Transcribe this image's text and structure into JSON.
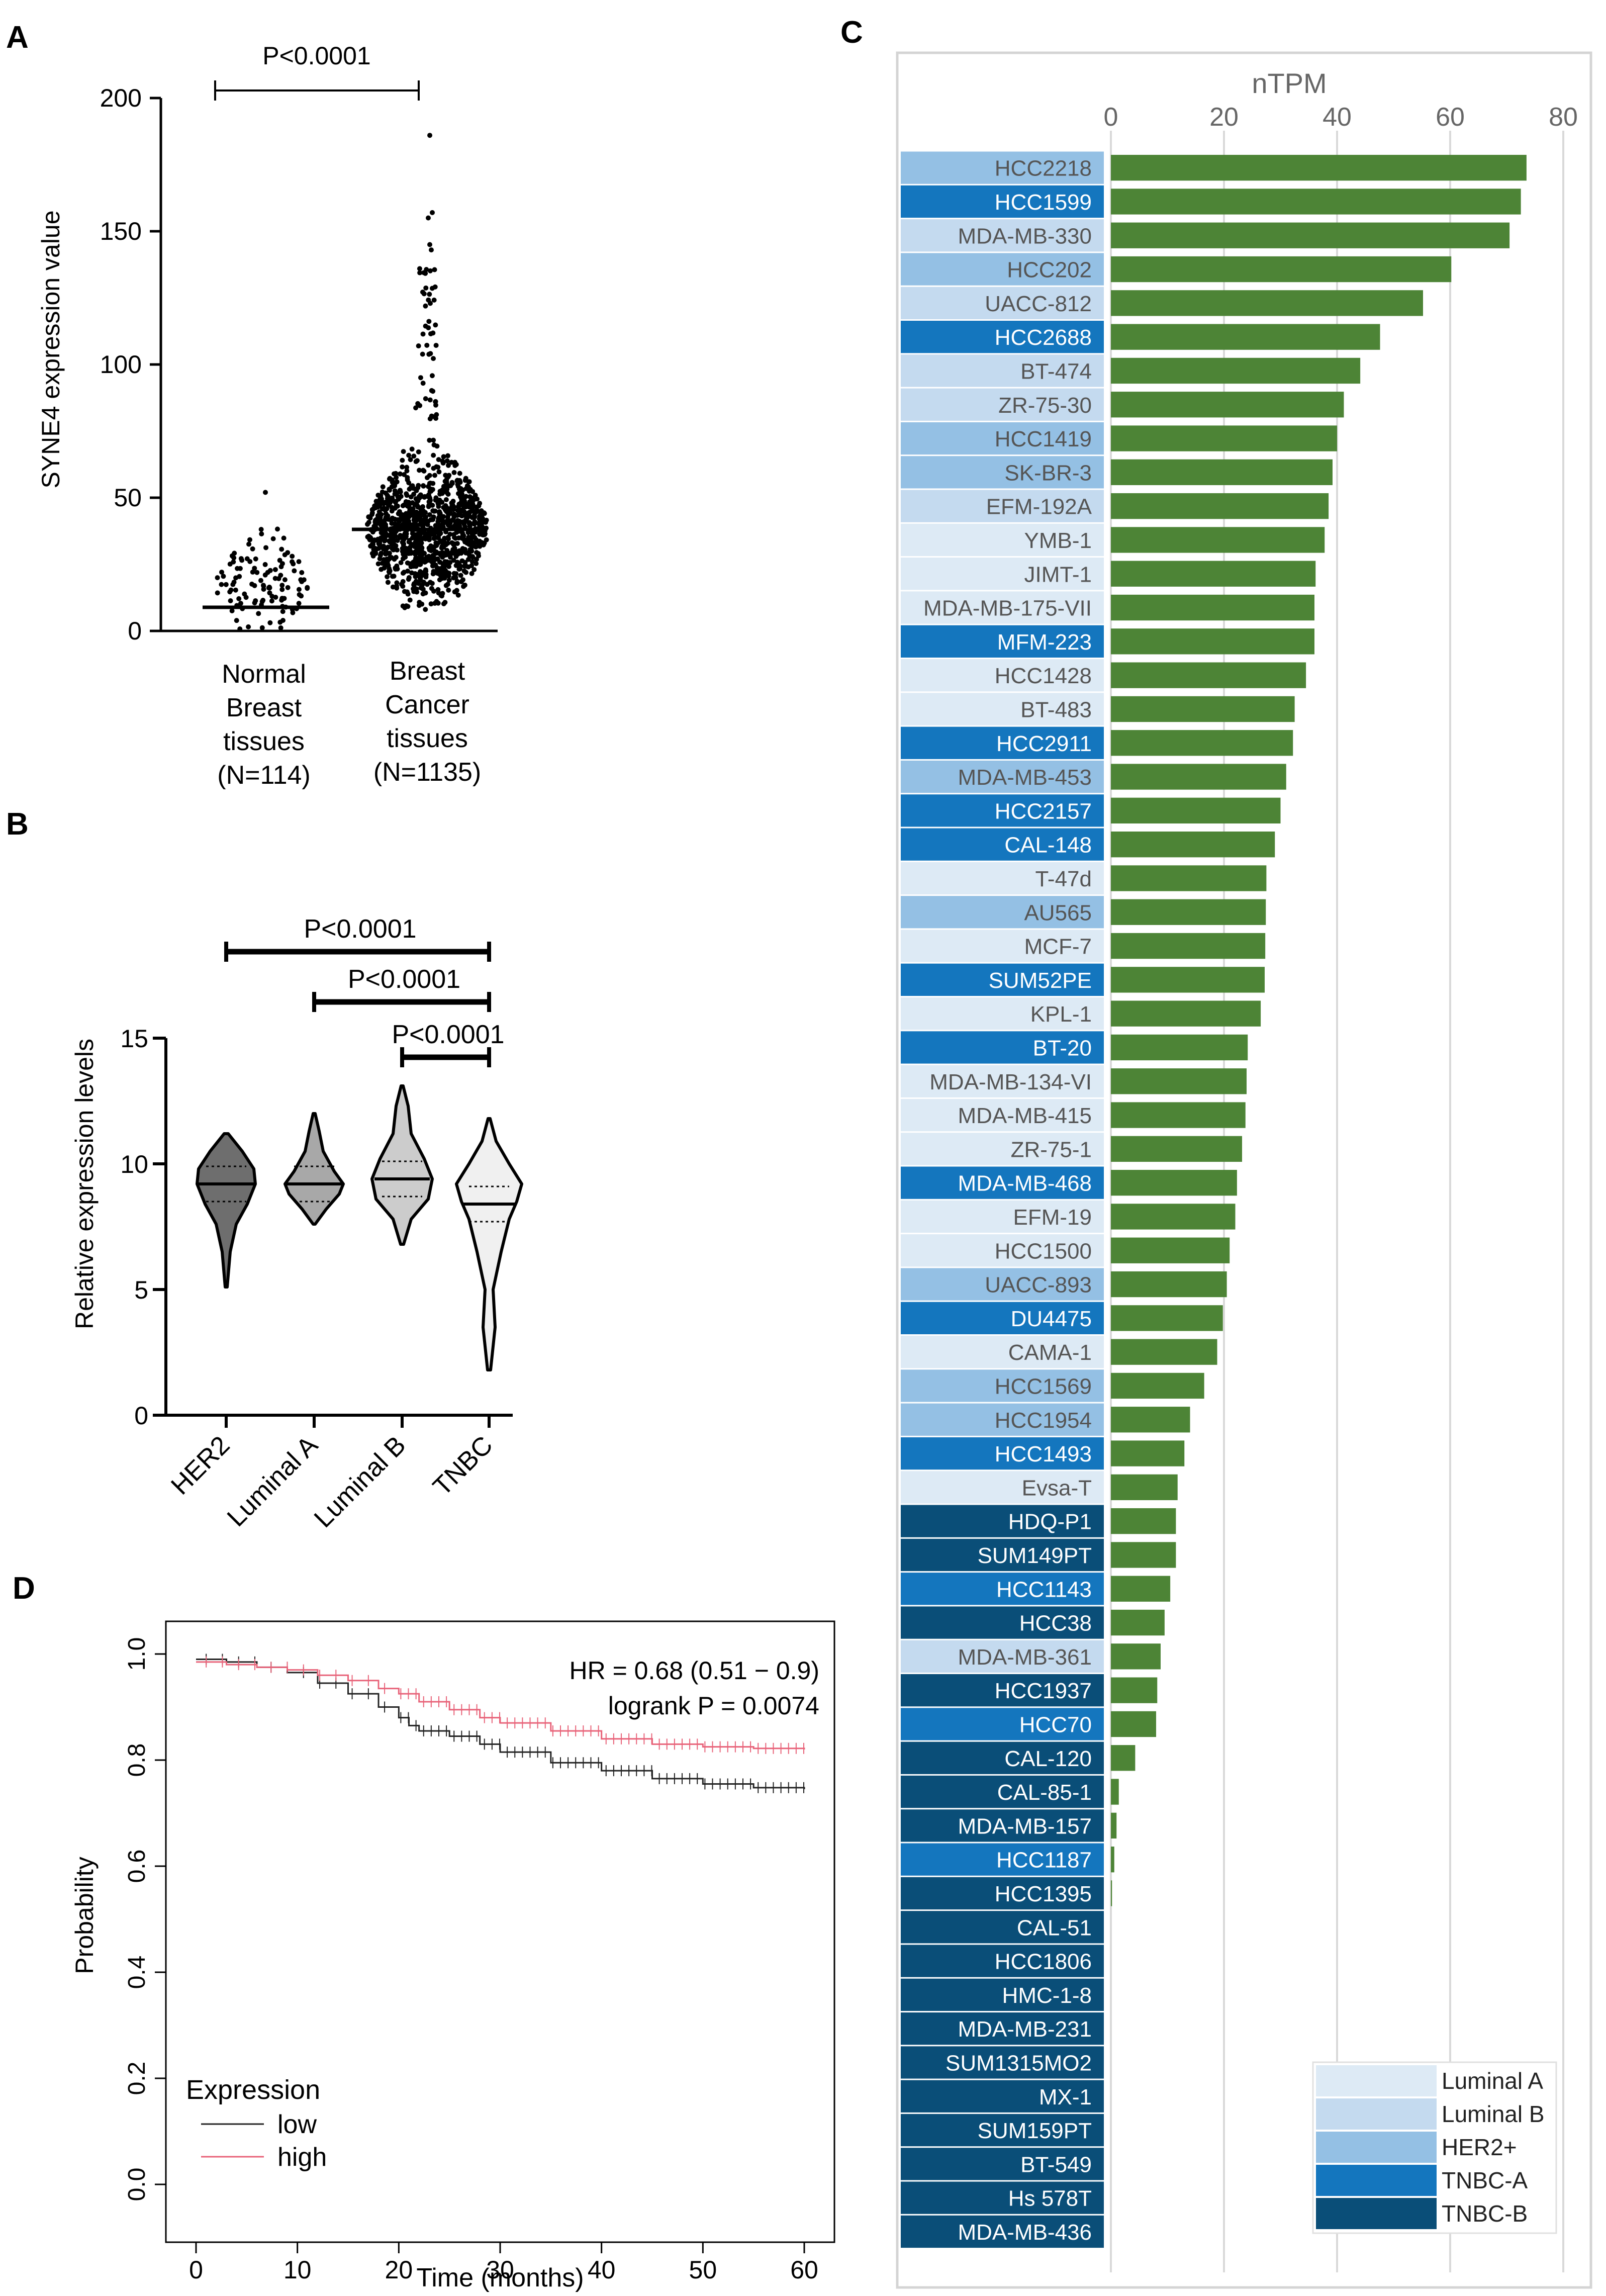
{
  "colors": {
    "luminal_a": "#ddeaf5",
    "luminal_b": "#c4daef",
    "her2": "#94c0e4",
    "tnbc_a": "#1476be",
    "tnbc_b": "#0a4e78",
    "bar": "#4d8436",
    "km_low": "#222222",
    "km_high": "#e8647a",
    "panel_border": "#d4d4d4",
    "grid": "#d9d9d9"
  },
  "chart_data": [
    {
      "id": "A",
      "panel_label": "A",
      "type": "scatter",
      "ylabel": "SYNE4 expression value",
      "ylim": [
        0,
        200
      ],
      "yticks": [
        "0",
        "50",
        "100",
        "150",
        "200"
      ],
      "groups": [
        {
          "label_lines": [
            "Normal",
            "Breast",
            "tissues",
            "(N=114)"
          ],
          "n": 114,
          "median": 17
        },
        {
          "label_lines": [
            "Breast",
            "Cancer",
            "tissues",
            "(N=1135)"
          ],
          "n": 1135,
          "median": 38
        }
      ],
      "annotation": "P<0.0001"
    },
    {
      "id": "B",
      "panel_label": "B",
      "type": "violin",
      "ylabel": "Relative expression levels",
      "ylim": [
        0,
        15
      ],
      "yticks": [
        "0",
        "5",
        "10",
        "15"
      ],
      "categories": [
        "HER2",
        "Luminal A",
        "Luminal B",
        "TNBC"
      ],
      "medians": [
        9.2,
        9.2,
        9.4,
        8.4
      ],
      "ranges": [
        [
          5.1,
          11.2
        ],
        [
          7.6,
          12.0
        ],
        [
          6.8,
          13.1
        ],
        [
          1.8,
          11.8
        ]
      ],
      "comparisons": [
        {
          "from": "HER2",
          "to": "TNBC",
          "label": "P<0.0001"
        },
        {
          "from": "Luminal A",
          "to": "TNBC",
          "label": "P<0.0001"
        },
        {
          "from": "Luminal B",
          "to": "TNBC",
          "label": "P<0.0001"
        }
      ]
    },
    {
      "id": "C",
      "panel_label": "C",
      "type": "bar",
      "title": "nTPM",
      "xlim": [
        0,
        80
      ],
      "xticks": [
        "0",
        "20",
        "40",
        "60",
        "80"
      ],
      "categories": [
        "HCC2218",
        "HCC1599",
        "MDA-MB-330",
        "HCC202",
        "UACC-812",
        "HCC2688",
        "BT-474",
        "ZR-75-30",
        "HCC1419",
        "SK-BR-3",
        "EFM-192A",
        "YMB-1",
        "JIMT-1",
        "MDA-MB-175-VII",
        "MFM-223",
        "HCC1428",
        "BT-483",
        "HCC2911",
        "MDA-MB-453",
        "HCC2157",
        "CAL-148",
        "T-47d",
        "AU565",
        "MCF-7",
        "SUM52PE",
        "KPL-1",
        "BT-20",
        "MDA-MB-134-VI",
        "MDA-MB-415",
        "ZR-75-1",
        "MDA-MB-468",
        "EFM-19",
        "HCC1500",
        "UACC-893",
        "DU4475",
        "CAMA-1",
        "HCC1569",
        "HCC1954",
        "HCC1493",
        "Evsa-T",
        "HDQ-P1",
        "SUM149PT",
        "HCC1143",
        "HCC38",
        "MDA-MB-361",
        "HCC1937",
        "HCC70",
        "CAL-120",
        "CAL-85-1",
        "MDA-MB-157",
        "HCC1187",
        "HCC1395",
        "CAL-51",
        "HCC1806",
        "HMC-1-8",
        "MDA-MB-231",
        "SUM1315MO2",
        "MX-1",
        "SUM159PT",
        "BT-549",
        "Hs 578T",
        "MDA-MB-436"
      ],
      "values": [
        73.5,
        72.5,
        70.5,
        60.2,
        55.2,
        47.6,
        44.1,
        41.2,
        40.0,
        39.2,
        38.5,
        37.8,
        36.2,
        36.0,
        36.0,
        34.5,
        32.5,
        32.2,
        31.0,
        30.0,
        29.0,
        27.5,
        27.4,
        27.3,
        27.2,
        26.5,
        24.2,
        24.0,
        23.8,
        23.2,
        22.3,
        22.0,
        21.0,
        20.5,
        19.8,
        18.8,
        16.5,
        14.0,
        13.0,
        11.8,
        11.5,
        11.5,
        10.5,
        9.5,
        8.8,
        8.2,
        8.0,
        4.3,
        1.4,
        1.0,
        0.6,
        0.2,
        0,
        0,
        0,
        0,
        0,
        0,
        0,
        0,
        0,
        0
      ],
      "subtypes": [
        "HER2+",
        "TNBC-A",
        "Luminal B",
        "HER2+",
        "Luminal B",
        "TNBC-A",
        "Luminal B",
        "Luminal B",
        "HER2+",
        "HER2+",
        "Luminal B",
        "Luminal A",
        "Luminal A",
        "Luminal A",
        "TNBC-A",
        "Luminal A",
        "Luminal A",
        "TNBC-A",
        "HER2+",
        "TNBC-A",
        "TNBC-A",
        "Luminal A",
        "HER2+",
        "Luminal A",
        "TNBC-A",
        "Luminal A",
        "TNBC-A",
        "Luminal A",
        "Luminal A",
        "Luminal A",
        "TNBC-A",
        "Luminal A",
        "Luminal A",
        "HER2+",
        "TNBC-A",
        "Luminal A",
        "HER2+",
        "HER2+",
        "TNBC-A",
        "Luminal A",
        "TNBC-B",
        "TNBC-B",
        "TNBC-A",
        "TNBC-B",
        "Luminal B",
        "TNBC-B",
        "TNBC-A",
        "TNBC-B",
        "TNBC-B",
        "TNBC-B",
        "TNBC-A",
        "TNBC-B",
        "TNBC-B",
        "TNBC-B",
        "TNBC-B",
        "TNBC-B",
        "TNBC-B",
        "TNBC-B",
        "TNBC-B",
        "TNBC-B",
        "TNBC-B",
        "TNBC-B"
      ],
      "legend": [
        "Luminal A",
        "Luminal B",
        "HER2+",
        "TNBC-A",
        "TNBC-B"
      ],
      "legend_position": "bottom-right"
    },
    {
      "id": "D",
      "panel_label": "D",
      "type": "line",
      "xlabel": "Time (months)",
      "ylabel": "Probability",
      "xlim": [
        0,
        60
      ],
      "ylim": [
        0,
        1
      ],
      "xticks": [
        "0",
        "10",
        "20",
        "30",
        "40",
        "50",
        "60"
      ],
      "yticks": [
        "0.0",
        "0.2",
        "0.4",
        "0.6",
        "0.8",
        "1.0"
      ],
      "annotation_hr": "HR = 0.68 (0.51 − 0.9)",
      "annotation_logrank": "logrank P = 0.0074",
      "legend_title": "Expression",
      "legend_position": "bottom-left",
      "series": [
        {
          "name": "low",
          "x": [
            0,
            3,
            6,
            9,
            12,
            15,
            18,
            20,
            21,
            22,
            25,
            28,
            30,
            35,
            40,
            45,
            50,
            55,
            60
          ],
          "y": [
            0.99,
            0.985,
            0.975,
            0.965,
            0.945,
            0.925,
            0.9,
            0.88,
            0.865,
            0.855,
            0.845,
            0.83,
            0.815,
            0.795,
            0.78,
            0.765,
            0.755,
            0.748,
            0.745
          ]
        },
        {
          "name": "high",
          "x": [
            0,
            3,
            6,
            9,
            12,
            15,
            18,
            20,
            22,
            25,
            28,
            30,
            35,
            40,
            45,
            50,
            55,
            60
          ],
          "y": [
            0.985,
            0.98,
            0.975,
            0.97,
            0.96,
            0.95,
            0.935,
            0.925,
            0.91,
            0.895,
            0.88,
            0.87,
            0.855,
            0.84,
            0.83,
            0.825,
            0.822,
            0.82
          ]
        }
      ]
    }
  ]
}
